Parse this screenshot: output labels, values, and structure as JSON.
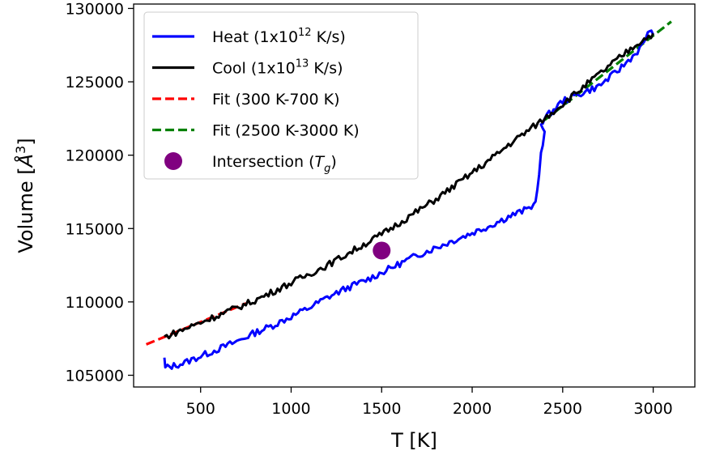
{
  "chart_data": {
    "type": "line",
    "xlabel": "T [K]",
    "ylabel_main": "Volume [",
    "ylabel_angstrom": "Å",
    "ylabel_exp": "3",
    "ylabel_close": "]",
    "xlim": [
      130,
      3230
    ],
    "ylim": [
      104200,
      130300
    ],
    "xticks": [
      500,
      1000,
      1500,
      2000,
      2500,
      3000
    ],
    "yticks": [
      105000,
      110000,
      115000,
      120000,
      125000,
      130000
    ],
    "legend_position": "upper left",
    "grid": false,
    "series": [
      {
        "name": "Heat (1x10^12 K/s)",
        "legend_parts": [
          "Heat (1x10",
          "12",
          " K/s)"
        ],
        "style": "solid",
        "color": "#0000ff",
        "points": [
          [
            300,
            106100
          ],
          [
            305,
            105500
          ],
          [
            400,
            105800
          ],
          [
            500,
            106300
          ],
          [
            600,
            106800
          ],
          [
            700,
            107300
          ],
          [
            800,
            107900
          ],
          [
            900,
            108400
          ],
          [
            1000,
            109000
          ],
          [
            1100,
            109600
          ],
          [
            1200,
            110300
          ],
          [
            1300,
            110900
          ],
          [
            1400,
            111400
          ],
          [
            1500,
            112000
          ],
          [
            1600,
            112600
          ],
          [
            1700,
            113200
          ],
          [
            1800,
            113700
          ],
          [
            1900,
            114200
          ],
          [
            2000,
            114700
          ],
          [
            2100,
            115200
          ],
          [
            2200,
            115800
          ],
          [
            2300,
            116300
          ],
          [
            2340,
            116600
          ],
          [
            2360,
            117500
          ],
          [
            2380,
            120000
          ],
          [
            2400,
            121400
          ],
          [
            2380,
            122200
          ],
          [
            2400,
            122500
          ],
          [
            2500,
            123700
          ],
          [
            2600,
            124200
          ],
          [
            2700,
            124700
          ],
          [
            2800,
            125700
          ],
          [
            2900,
            126900
          ],
          [
            2950,
            127600
          ],
          [
            2970,
            128500
          ],
          [
            3000,
            128200
          ]
        ]
      },
      {
        "name": "Cool (1x10^13 K/s)",
        "legend_parts": [
          "Cool (1x10",
          "13",
          " K/s)"
        ],
        "style": "solid",
        "color": "#000000",
        "points": [
          [
            300,
            107600
          ],
          [
            400,
            108100
          ],
          [
            500,
            108600
          ],
          [
            600,
            109100
          ],
          [
            700,
            109600
          ],
          [
            800,
            110100
          ],
          [
            900,
            110700
          ],
          [
            1000,
            111300
          ],
          [
            1100,
            111900
          ],
          [
            1200,
            112500
          ],
          [
            1300,
            113200
          ],
          [
            1400,
            113900
          ],
          [
            1500,
            114600
          ],
          [
            1600,
            115400
          ],
          [
            1700,
            116200
          ],
          [
            1800,
            117000
          ],
          [
            1900,
            117900
          ],
          [
            2000,
            118800
          ],
          [
            2100,
            119700
          ],
          [
            2200,
            120700
          ],
          [
            2300,
            121600
          ],
          [
            2400,
            122500
          ],
          [
            2500,
            123500
          ],
          [
            2600,
            124500
          ],
          [
            2700,
            125500
          ],
          [
            2800,
            126500
          ],
          [
            2900,
            127500
          ],
          [
            3000,
            128300
          ]
        ]
      },
      {
        "name": "Fit (300 K-700 K)",
        "legend_parts": [
          "Fit (300 K-700 K)",
          "",
          ""
        ],
        "style": "dashed",
        "color": "#ff0000",
        "points": [
          [
            200,
            107100
          ],
          [
            750,
            109900
          ]
        ]
      },
      {
        "name": "Fit (2500 K-3000 K)",
        "legend_parts": [
          "Fit (2500 K-3000 K)",
          "",
          ""
        ],
        "style": "dashed",
        "color": "#008000",
        "points": [
          [
            2400,
            122400
          ],
          [
            3100,
            129100
          ]
        ]
      },
      {
        "name": "Intersection (T_g)",
        "legend_parts": [
          "Intersection (",
          "T",
          "g",
          ")"
        ],
        "style": "marker",
        "color": "#800080",
        "points": [
          [
            1500,
            113500
          ]
        ]
      }
    ]
  }
}
